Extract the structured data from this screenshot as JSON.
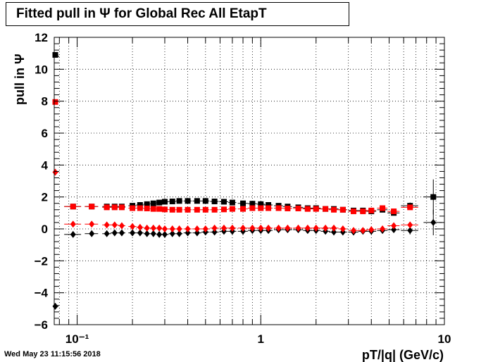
{
  "title": "Fitted pull in  Ψ  for Global Rec All EtapT",
  "timestamp": "Wed May 23 11:15:56 2018",
  "chart_data": {
    "type": "scatter",
    "title": "Fitted pull in  Ψ  for Global Rec All EtapT",
    "xlabel": "pT/|q| (GeV/c)",
    "ylabel": "pull in  Ψ",
    "xscale": "log",
    "xlim": [
      0.075,
      10
    ],
    "ylim": [
      -6,
      12
    ],
    "grid": true,
    "x_tick_labels": [
      "10⁻¹",
      "1",
      "10"
    ],
    "y_tick_labels": [
      "−6",
      "−4",
      "−2",
      "0",
      "2",
      "4",
      "6",
      "8",
      "10",
      "12"
    ],
    "series": [
      {
        "color": "#000000",
        "marker": "square",
        "x": [
          0.076,
          0.095,
          0.12,
          0.145,
          0.16,
          0.175,
          0.2,
          0.22,
          0.24,
          0.26,
          0.28,
          0.3,
          0.33,
          0.36,
          0.4,
          0.45,
          0.5,
          0.56,
          0.63,
          0.7,
          0.8,
          0.9,
          1.0,
          1.1,
          1.25,
          1.4,
          1.6,
          1.8,
          2.0,
          2.25,
          2.5,
          2.8,
          3.2,
          3.6,
          4.0,
          4.6,
          5.3,
          6.5,
          8.7
        ],
        "y": [
          10.9,
          1.4,
          1.4,
          1.4,
          1.4,
          1.4,
          1.45,
          1.5,
          1.55,
          1.6,
          1.65,
          1.7,
          1.72,
          1.75,
          1.75,
          1.75,
          1.75,
          1.72,
          1.7,
          1.65,
          1.6,
          1.58,
          1.55,
          1.5,
          1.45,
          1.4,
          1.35,
          1.3,
          1.3,
          1.25,
          1.25,
          1.2,
          1.15,
          1.15,
          1.1,
          1.2,
          1.0,
          1.45,
          2.0
        ],
        "xerr": [
          0.003,
          0.01,
          0.01,
          0.008,
          0.008,
          0.008,
          0.01,
          0.01,
          0.01,
          0.01,
          0.01,
          0.015,
          0.015,
          0.015,
          0.02,
          0.025,
          0.025,
          0.03,
          0.035,
          0.035,
          0.05,
          0.05,
          0.05,
          0.06,
          0.07,
          0.08,
          0.1,
          0.1,
          0.12,
          0.13,
          0.15,
          0.15,
          0.2,
          0.2,
          0.25,
          0.3,
          0.4,
          0.7,
          1.0
        ],
        "yerr": [
          0.15,
          0.05,
          0.05,
          0.05,
          0.05,
          0.05,
          0.05,
          0.05,
          0.05,
          0.05,
          0.05,
          0.05,
          0.05,
          0.05,
          0.05,
          0.05,
          0.05,
          0.05,
          0.05,
          0.05,
          0.05,
          0.05,
          0.05,
          0.05,
          0.05,
          0.05,
          0.05,
          0.05,
          0.05,
          0.05,
          0.05,
          0.05,
          0.05,
          0.05,
          0.05,
          0.05,
          0.1,
          0.2,
          1.1
        ]
      },
      {
        "color": "#ff0000",
        "marker": "square",
        "x": [
          0.076,
          0.095,
          0.12,
          0.145,
          0.16,
          0.175,
          0.2,
          0.22,
          0.24,
          0.26,
          0.28,
          0.3,
          0.33,
          0.36,
          0.4,
          0.45,
          0.5,
          0.56,
          0.63,
          0.7,
          0.8,
          0.9,
          1.0,
          1.1,
          1.25,
          1.4,
          1.6,
          1.8,
          2.0,
          2.25,
          2.5,
          2.8,
          3.2,
          3.6,
          4.0,
          4.6,
          5.3,
          6.5
        ],
        "y": [
          7.95,
          1.4,
          1.4,
          1.35,
          1.35,
          1.35,
          1.3,
          1.3,
          1.28,
          1.25,
          1.25,
          1.22,
          1.2,
          1.2,
          1.2,
          1.2,
          1.2,
          1.2,
          1.22,
          1.25,
          1.25,
          1.3,
          1.3,
          1.3,
          1.3,
          1.28,
          1.28,
          1.25,
          1.25,
          1.25,
          1.2,
          1.2,
          1.1,
          1.1,
          1.15,
          1.3,
          1.1,
          1.35
        ],
        "xerr": [
          0.003,
          0.01,
          0.01,
          0.008,
          0.008,
          0.008,
          0.01,
          0.01,
          0.01,
          0.01,
          0.01,
          0.015,
          0.015,
          0.015,
          0.02,
          0.025,
          0.025,
          0.03,
          0.035,
          0.035,
          0.05,
          0.05,
          0.05,
          0.06,
          0.07,
          0.08,
          0.1,
          0.1,
          0.12,
          0.13,
          0.15,
          0.15,
          0.2,
          0.2,
          0.25,
          0.3,
          0.4,
          0.7
        ],
        "yerr": [
          0.1,
          0.05,
          0.05,
          0.05,
          0.05,
          0.05,
          0.05,
          0.05,
          0.05,
          0.05,
          0.05,
          0.05,
          0.05,
          0.05,
          0.05,
          0.05,
          0.05,
          0.05,
          0.05,
          0.05,
          0.05,
          0.05,
          0.05,
          0.05,
          0.05,
          0.05,
          0.05,
          0.05,
          0.05,
          0.05,
          0.05,
          0.05,
          0.05,
          0.05,
          0.05,
          0.05,
          0.1,
          0.15
        ]
      },
      {
        "color": "#000000",
        "marker": "diamond",
        "x": [
          0.076,
          0.095,
          0.12,
          0.145,
          0.16,
          0.175,
          0.2,
          0.22,
          0.24,
          0.26,
          0.28,
          0.3,
          0.33,
          0.36,
          0.4,
          0.45,
          0.5,
          0.56,
          0.63,
          0.7,
          0.8,
          0.9,
          1.0,
          1.1,
          1.25,
          1.4,
          1.6,
          1.8,
          2.0,
          2.25,
          2.5,
          2.8,
          3.2,
          3.6,
          4.0,
          4.6,
          5.3,
          6.5,
          8.7
        ],
        "y": [
          -4.85,
          -0.35,
          -0.3,
          -0.3,
          -0.25,
          -0.25,
          -0.25,
          -0.25,
          -0.3,
          -0.3,
          -0.35,
          -0.35,
          -0.3,
          -0.3,
          -0.25,
          -0.25,
          -0.2,
          -0.2,
          -0.15,
          -0.15,
          -0.15,
          -0.1,
          -0.1,
          -0.1,
          -0.05,
          -0.05,
          -0.05,
          -0.1,
          -0.1,
          -0.15,
          -0.2,
          -0.2,
          -0.2,
          -0.15,
          -0.15,
          -0.1,
          -0.05,
          -0.1,
          0.4
        ],
        "xerr": [
          0.003,
          0.01,
          0.01,
          0.008,
          0.008,
          0.008,
          0.01,
          0.01,
          0.01,
          0.01,
          0.01,
          0.015,
          0.015,
          0.015,
          0.02,
          0.025,
          0.025,
          0.03,
          0.035,
          0.035,
          0.05,
          0.05,
          0.05,
          0.06,
          0.07,
          0.08,
          0.1,
          0.1,
          0.12,
          0.13,
          0.15,
          0.15,
          0.2,
          0.2,
          0.25,
          0.3,
          0.4,
          0.7,
          1.0
        ],
        "yerr": [
          0.15,
          0.05,
          0.05,
          0.05,
          0.05,
          0.05,
          0.05,
          0.05,
          0.05,
          0.05,
          0.05,
          0.05,
          0.05,
          0.05,
          0.05,
          0.05,
          0.05,
          0.05,
          0.05,
          0.05,
          0.05,
          0.05,
          0.05,
          0.05,
          0.05,
          0.05,
          0.05,
          0.05,
          0.05,
          0.05,
          0.05,
          0.05,
          0.05,
          0.05,
          0.05,
          0.05,
          0.1,
          0.25,
          0.8
        ]
      },
      {
        "color": "#ff0000",
        "marker": "diamond",
        "x": [
          0.076,
          0.095,
          0.12,
          0.145,
          0.16,
          0.175,
          0.2,
          0.22,
          0.24,
          0.26,
          0.28,
          0.3,
          0.33,
          0.36,
          0.4,
          0.45,
          0.5,
          0.56,
          0.63,
          0.7,
          0.8,
          0.9,
          1.0,
          1.1,
          1.25,
          1.4,
          1.6,
          1.8,
          2.0,
          2.25,
          2.5,
          2.8,
          3.2,
          3.6,
          4.0,
          4.6,
          5.3,
          6.5
        ],
        "y": [
          3.55,
          0.3,
          0.3,
          0.25,
          0.25,
          0.2,
          0.15,
          0.1,
          0.05,
          0.05,
          0.05,
          0.0,
          0.0,
          0.0,
          0.0,
          0.0,
          0.0,
          0.05,
          0.05,
          0.05,
          0.05,
          0.05,
          0.05,
          0.05,
          0.05,
          0.05,
          0.05,
          0.05,
          0.05,
          0.05,
          0.05,
          0.0,
          -0.1,
          -0.1,
          -0.05,
          0.0,
          0.2,
          0.25
        ],
        "xerr": [
          0.003,
          0.01,
          0.01,
          0.008,
          0.008,
          0.008,
          0.01,
          0.01,
          0.01,
          0.01,
          0.01,
          0.015,
          0.015,
          0.015,
          0.02,
          0.025,
          0.025,
          0.03,
          0.035,
          0.035,
          0.05,
          0.05,
          0.05,
          0.06,
          0.07,
          0.08,
          0.1,
          0.1,
          0.12,
          0.13,
          0.15,
          0.15,
          0.2,
          0.2,
          0.25,
          0.3,
          0.4,
          0.7
        ],
        "yerr": [
          0.1,
          0.05,
          0.05,
          0.05,
          0.05,
          0.05,
          0.05,
          0.05,
          0.05,
          0.05,
          0.05,
          0.05,
          0.05,
          0.05,
          0.05,
          0.05,
          0.05,
          0.05,
          0.05,
          0.05,
          0.05,
          0.05,
          0.05,
          0.05,
          0.05,
          0.05,
          0.05,
          0.05,
          0.05,
          0.05,
          0.05,
          0.05,
          0.05,
          0.05,
          0.05,
          0.05,
          0.1,
          0.15
        ]
      }
    ]
  }
}
